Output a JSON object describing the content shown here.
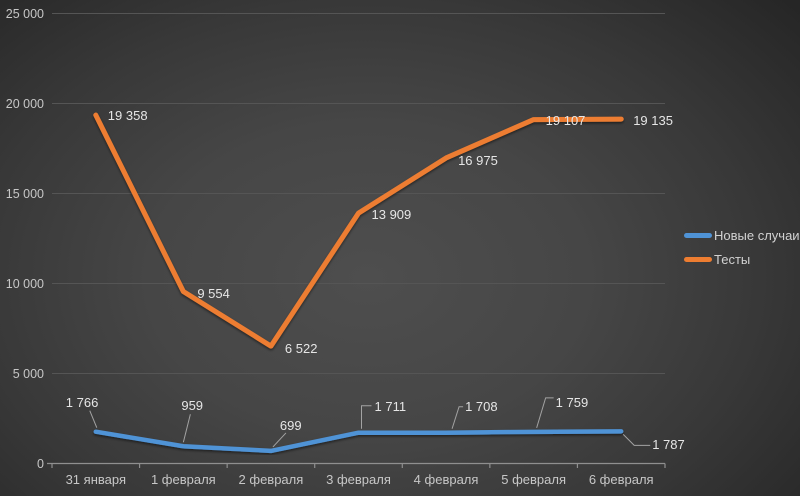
{
  "chart_data": {
    "type": "line",
    "title": "",
    "categories": [
      "31 января",
      "1 февраля",
      "2 февраля",
      "3 февраля",
      "4 февраля",
      "5 февраля",
      "6 февраля"
    ],
    "series": [
      {
        "name": "Новые случаи",
        "color": "#4f93d6",
        "values": [
          1766,
          959,
          699,
          1711,
          1708,
          1759,
          1787
        ],
        "labels": [
          "1 766",
          "959",
          "699",
          "1 711",
          "1 708",
          "1 759",
          "1 787"
        ]
      },
      {
        "name": "Тесты",
        "color": "#ed7d31",
        "values": [
          19358,
          9554,
          6522,
          13909,
          16975,
          19107,
          19135
        ],
        "labels": [
          "19 358",
          "9 554",
          "6 522",
          "13 909",
          "16 975",
          "19 107",
          "19 135"
        ]
      }
    ],
    "y_axis": {
      "min": 0,
      "max": 25000,
      "step": 5000,
      "tick_values": [
        0,
        5000,
        10000,
        15000,
        20000,
        25000
      ],
      "tick_labels": [
        "0",
        "5 000",
        "10 000",
        "15 000",
        "20 000",
        "25 000"
      ]
    },
    "legend": {
      "position": "right",
      "items": [
        "Новые случаи",
        "Тесты"
      ]
    },
    "grid": true,
    "colors": {
      "background_center": "#4e4e4e",
      "background_edge": "#262626",
      "gridline": "#555555",
      "axis_line": "#8f8f8f",
      "axis_text": "#c7c7c7",
      "data_label_text": "#e6e6e6",
      "leader_line": "#a3a3a3"
    }
  }
}
